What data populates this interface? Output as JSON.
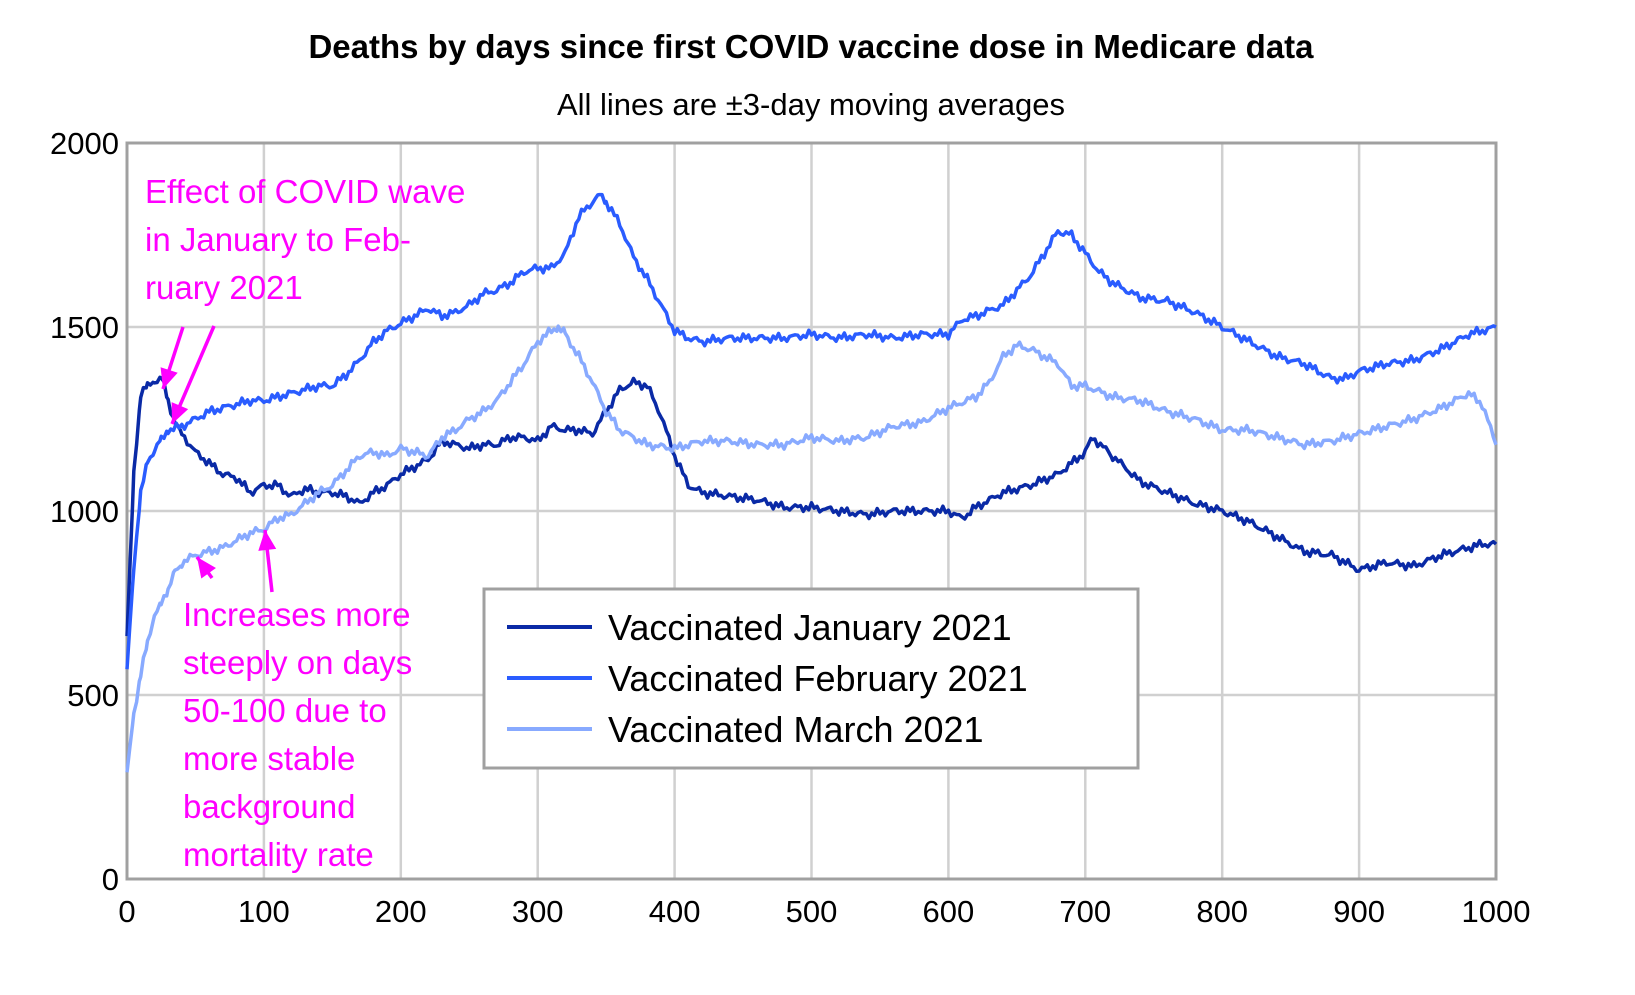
{
  "chart_data": {
    "type": "line",
    "title": "Deaths by days since first COVID vaccine dose in Medicare data",
    "subtitle": "All lines are ±3-day moving averages",
    "xlabel": "",
    "ylabel": "",
    "xlim": [
      0,
      1000
    ],
    "ylim": [
      0,
      2000
    ],
    "xticks": [
      "0",
      "100",
      "200",
      "300",
      "400",
      "500",
      "600",
      "700",
      "800",
      "900",
      "1000"
    ],
    "yticks": [
      "0",
      "500",
      "1000",
      "1500",
      "2000"
    ],
    "grid": true,
    "legend_position": "bottom-center",
    "series": [
      {
        "name": "Vaccinated January 2021",
        "color": "#0a2aa6",
        "x": [
          0,
          5,
          10,
          15,
          20,
          25,
          30,
          35,
          40,
          50,
          60,
          70,
          80,
          90,
          100,
          110,
          120,
          130,
          140,
          150,
          160,
          170,
          180,
          190,
          200,
          210,
          220,
          230,
          240,
          250,
          260,
          270,
          280,
          290,
          300,
          310,
          320,
          330,
          340,
          350,
          360,
          370,
          380,
          390,
          400,
          410,
          420,
          440,
          460,
          480,
          500,
          520,
          540,
          560,
          580,
          600,
          610,
          620,
          640,
          660,
          680,
          690,
          700,
          705,
          720,
          740,
          760,
          780,
          800,
          820,
          840,
          860,
          880,
          890,
          900,
          920,
          940,
          960,
          980,
          990,
          1000
        ],
        "y": [
          660,
          1100,
          1320,
          1340,
          1350,
          1365,
          1300,
          1240,
          1210,
          1160,
          1130,
          1100,
          1090,
          1050,
          1070,
          1070,
          1040,
          1060,
          1050,
          1050,
          1040,
          1020,
          1050,
          1070,
          1100,
          1120,
          1140,
          1190,
          1180,
          1170,
          1180,
          1180,
          1200,
          1200,
          1190,
          1230,
          1220,
          1220,
          1210,
          1270,
          1330,
          1350,
          1340,
          1260,
          1150,
          1070,
          1050,
          1040,
          1030,
          1010,
          1010,
          1000,
          990,
          1000,
          1000,
          1000,
          980,
          1010,
          1050,
          1070,
          1100,
          1130,
          1160,
          1200,
          1150,
          1080,
          1050,
          1020,
          1000,
          970,
          930,
          890,
          880,
          860,
          840,
          860,
          850,
          880,
          900,
          910,
          910
        ]
      },
      {
        "name": "Vaccinated February 2021",
        "color": "#2a5cff",
        "x": [
          0,
          5,
          10,
          15,
          20,
          25,
          30,
          40,
          50,
          60,
          70,
          80,
          90,
          100,
          110,
          120,
          130,
          140,
          150,
          160,
          170,
          180,
          190,
          200,
          210,
          220,
          230,
          240,
          250,
          260,
          270,
          280,
          290,
          300,
          310,
          320,
          330,
          340,
          345,
          350,
          360,
          370,
          380,
          390,
          400,
          410,
          420,
          440,
          460,
          480,
          500,
          520,
          540,
          560,
          580,
          600,
          610,
          620,
          640,
          650,
          660,
          670,
          680,
          690,
          700,
          710,
          720,
          740,
          760,
          780,
          800,
          820,
          840,
          860,
          870,
          880,
          890,
          900,
          920,
          940,
          960,
          970,
          980,
          990,
          1000
        ],
        "y": [
          570,
          850,
          1050,
          1130,
          1170,
          1190,
          1220,
          1230,
          1250,
          1270,
          1280,
          1290,
          1300,
          1300,
          1310,
          1320,
          1330,
          1340,
          1340,
          1370,
          1410,
          1460,
          1490,
          1510,
          1530,
          1550,
          1530,
          1540,
          1560,
          1590,
          1600,
          1620,
          1650,
          1660,
          1660,
          1700,
          1800,
          1840,
          1860,
          1840,
          1780,
          1690,
          1630,
          1560,
          1490,
          1470,
          1460,
          1470,
          1470,
          1470,
          1480,
          1470,
          1480,
          1470,
          1480,
          1480,
          1520,
          1530,
          1560,
          1600,
          1640,
          1700,
          1760,
          1750,
          1700,
          1650,
          1620,
          1580,
          1570,
          1540,
          1500,
          1460,
          1420,
          1400,
          1380,
          1360,
          1360,
          1380,
          1400,
          1410,
          1440,
          1460,
          1480,
          1490,
          1500
        ]
      },
      {
        "name": "Vaccinated March 2021",
        "color": "#88aaff",
        "x": [
          0,
          5,
          10,
          15,
          20,
          25,
          30,
          35,
          40,
          50,
          60,
          70,
          80,
          90,
          100,
          110,
          120,
          130,
          140,
          150,
          160,
          170,
          180,
          190,
          200,
          210,
          220,
          230,
          240,
          250,
          260,
          270,
          280,
          290,
          300,
          310,
          315,
          320,
          330,
          340,
          350,
          360,
          370,
          380,
          400,
          420,
          440,
          460,
          480,
          500,
          520,
          540,
          560,
          580,
          600,
          620,
          630,
          640,
          650,
          660,
          680,
          690,
          700,
          720,
          740,
          760,
          780,
          800,
          820,
          840,
          860,
          880,
          900,
          920,
          940,
          960,
          980,
          990,
          1000
        ],
        "y": [
          290,
          450,
          550,
          650,
          710,
          750,
          790,
          830,
          860,
          880,
          890,
          900,
          920,
          940,
          950,
          980,
          990,
          1020,
          1050,
          1070,
          1110,
          1150,
          1160,
          1150,
          1170,
          1160,
          1150,
          1200,
          1220,
          1250,
          1270,
          1300,
          1350,
          1400,
          1460,
          1490,
          1500,
          1480,
          1420,
          1350,
          1270,
          1220,
          1200,
          1180,
          1170,
          1190,
          1190,
          1180,
          1180,
          1200,
          1190,
          1200,
          1230,
          1240,
          1280,
          1310,
          1350,
          1420,
          1450,
          1440,
          1400,
          1340,
          1340,
          1310,
          1300,
          1270,
          1250,
          1220,
          1220,
          1200,
          1180,
          1190,
          1210,
          1230,
          1250,
          1280,
          1320,
          1290,
          1180
        ]
      }
    ],
    "annotations": [
      {
        "lines": [
          "Effect of COVID wave",
          "in January to Feb-",
          "ruary 2021"
        ],
        "color": "#ff00ff"
      },
      {
        "lines": [
          "Increases more",
          "steeply on days",
          "50-100 due to",
          "more stable",
          "background",
          "mortality rate"
        ],
        "color": "#ff00ff"
      }
    ]
  }
}
